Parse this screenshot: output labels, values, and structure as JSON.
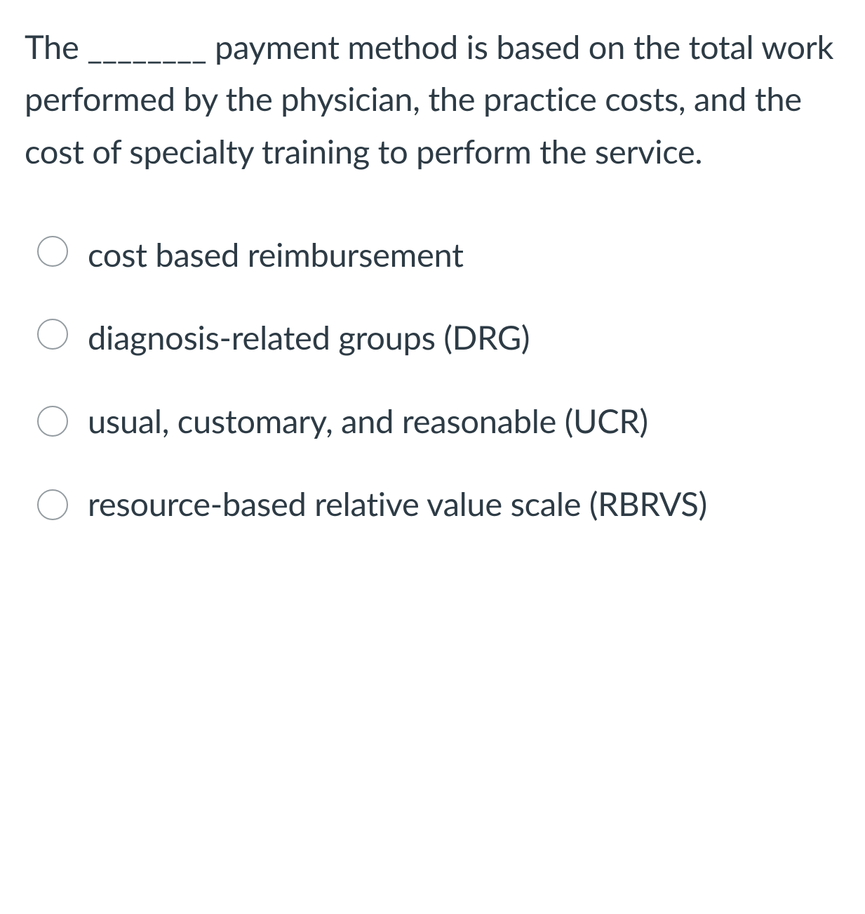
{
  "question": {
    "text": "The ________ payment method is based on the total work performed by the physician, the practice costs, and the cost of specialty training to perform the service."
  },
  "options": [
    {
      "label": "cost based reimbursement",
      "multiline": false
    },
    {
      "label": "diagnosis-related groups (DRG)",
      "multiline": false
    },
    {
      "label": "usual, customary, and reasonable (UCR)",
      "multiline": true
    },
    {
      "label": "resource-based relative value scale (RBRVS)",
      "multiline": true
    }
  ],
  "colors": {
    "text": "#2d3b45",
    "radio_border": "#949ca1",
    "background": "#ffffff"
  },
  "typography": {
    "question_fontsize": 47,
    "option_fontsize": 47,
    "line_height": 1.58
  }
}
